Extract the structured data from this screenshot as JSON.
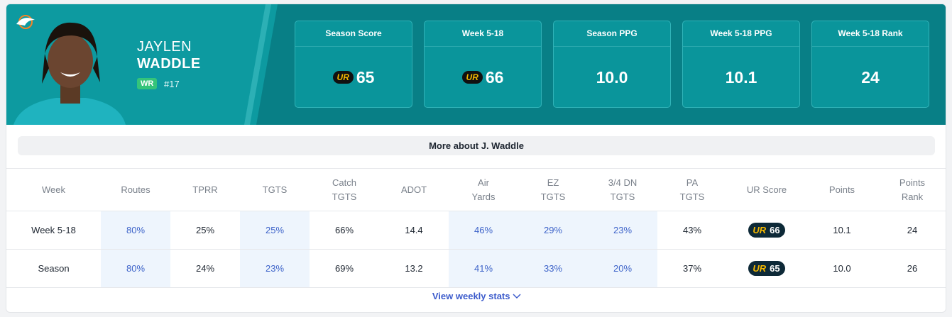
{
  "player": {
    "first_name": "JAYLEN",
    "last_name": "WADDLE",
    "position": "WR",
    "number": "#17"
  },
  "ur_logo": "UR",
  "stat_cards": [
    {
      "label": "Season Score",
      "value": "65",
      "badge": true
    },
    {
      "label": "Week 5-18",
      "value": "66",
      "badge": true
    },
    {
      "label": "Season PPG",
      "value": "10.0",
      "badge": false
    },
    {
      "label": "Week 5-18 PPG",
      "value": "10.1",
      "badge": false
    },
    {
      "label": "Week 5-18 Rank",
      "value": "24",
      "badge": false
    }
  ],
  "more_button": "More about J. Waddle",
  "table": {
    "headers": [
      [
        "Week"
      ],
      [
        "Routes"
      ],
      [
        "TPRR"
      ],
      [
        "TGTS"
      ],
      [
        "Catch",
        "TGTS"
      ],
      [
        "ADOT"
      ],
      [
        "Air",
        "Yards"
      ],
      [
        "EZ",
        "TGTS"
      ],
      [
        "3/4 DN",
        "TGTS"
      ],
      [
        "PA",
        "TGTS"
      ],
      [
        "UR Score"
      ],
      [
        "Points"
      ],
      [
        "Points",
        "Rank"
      ]
    ],
    "rows": [
      [
        "Week 5-18",
        "80%",
        "25%",
        "25%",
        "66%",
        "14.4",
        "46%",
        "29%",
        "23%",
        "43%",
        "66",
        "10.1",
        "24"
      ],
      [
        "Season",
        "80%",
        "24%",
        "23%",
        "69%",
        "13.2",
        "41%",
        "33%",
        "20%",
        "37%",
        "65",
        "10.0",
        "26"
      ]
    ]
  },
  "view_link": "View weekly stats"
}
